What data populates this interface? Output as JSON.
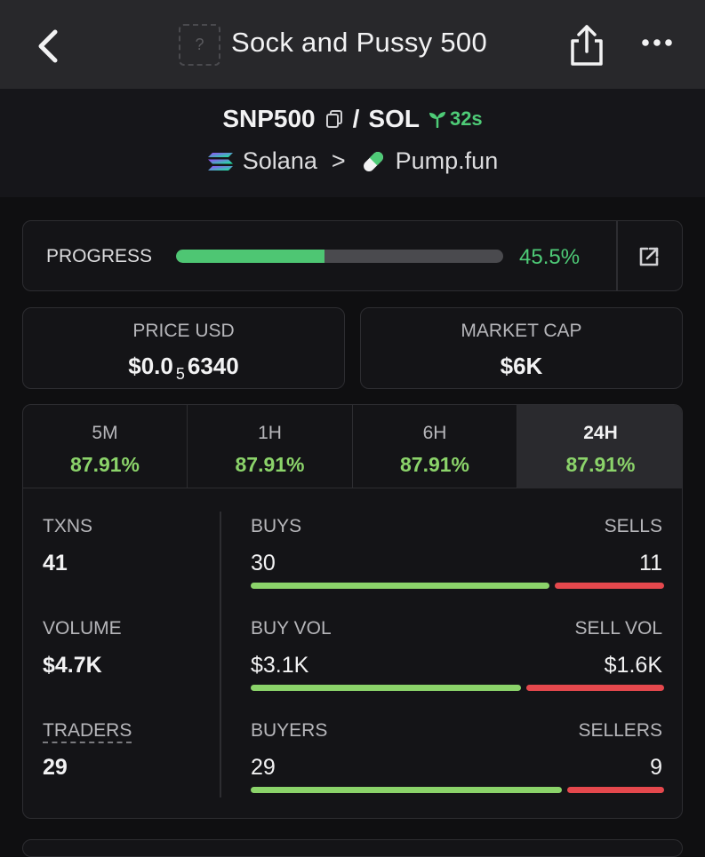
{
  "header": {
    "title": "Sock and Pussy 500",
    "thumb_placeholder": "?"
  },
  "pair": {
    "base": "SNP500",
    "separator": "/",
    "quote": "SOL",
    "age": "32s",
    "chain": "Solana",
    "chevron": ">",
    "dex": "Pump.fun"
  },
  "progress": {
    "label": "PROGRESS",
    "value_text": "45.5%",
    "fraction": 0.455
  },
  "price": {
    "label": "PRICE USD",
    "prefix": "$0.0",
    "zeros": "5",
    "digits": "6340"
  },
  "market_cap": {
    "label": "MARKET CAP",
    "value": "$6K"
  },
  "timeframes": [
    {
      "label": "5M",
      "change": "87.91%",
      "active": false
    },
    {
      "label": "1H",
      "change": "87.91%",
      "active": false
    },
    {
      "label": "6H",
      "change": "87.91%",
      "active": false
    },
    {
      "label": "24H",
      "change": "87.91%",
      "active": true
    }
  ],
  "metrics": {
    "txns": {
      "label": "TXNS",
      "value": "41"
    },
    "buys": {
      "label": "BUYS",
      "value": "30"
    },
    "sells": {
      "label": "SELLS",
      "value": "11"
    },
    "volume": {
      "label": "VOLUME",
      "value": "$4.7K"
    },
    "buy_vol": {
      "label": "BUY VOL",
      "value": "$3.1K"
    },
    "sell_vol": {
      "label": "SELL VOL",
      "value": "$1.6K"
    },
    "traders": {
      "label": "TRADERS",
      "value": "29"
    },
    "buyers": {
      "label": "BUYERS",
      "value": "29"
    },
    "sellers": {
      "label": "SELLERS",
      "value": "9"
    }
  },
  "ratios": {
    "txns_buy_fraction": 0.73,
    "volume_buy_fraction": 0.66,
    "traders_buy_fraction": 0.76
  },
  "colors": {
    "accent_green": "#4ecb77",
    "buy_bar": "#8bd36a",
    "sell_bar": "#e5484d",
    "progress_track": "#4a4a4e"
  },
  "icons": {
    "back": "chevron-left-icon",
    "share": "share-icon",
    "more": "more-horizontal-icon",
    "copy": "copy-icon",
    "age": "sprout-icon",
    "chain": "solana-logo-icon",
    "dex": "pill-icon",
    "external": "external-link-icon"
  }
}
